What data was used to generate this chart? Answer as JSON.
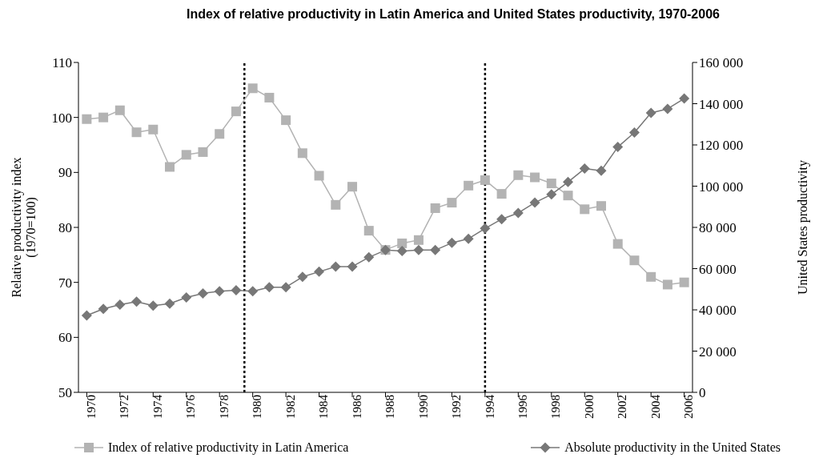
{
  "chart_data": {
    "type": "line",
    "title": "Index of relative productivity in Latin America and United States productivity, 1970-2006",
    "ylabel": "Relative productivity index (1970=100)",
    "y2label": "United States productivity",
    "x": [
      1970,
      1971,
      1972,
      1973,
      1974,
      1975,
      1976,
      1977,
      1978,
      1979,
      1980,
      1981,
      1982,
      1983,
      1984,
      1985,
      1986,
      1987,
      1988,
      1989,
      1990,
      1991,
      1992,
      1993,
      1994,
      1995,
      1996,
      1997,
      1998,
      1999,
      2000,
      2001,
      2002,
      2003,
      2004,
      2005,
      2006
    ],
    "series": [
      {
        "name": "Index of relative productivity in Latin America",
        "color": "#b3b3b3",
        "marker": "square",
        "values": [
          99.7,
          100,
          101.3,
          97.3,
          97.8,
          91,
          93.2,
          93.7,
          97,
          101.1,
          105.3,
          103.6,
          99.5,
          93.5,
          89.4,
          84.1,
          87.4,
          79.4,
          75.9,
          77.1,
          77.7,
          83.5,
          84.5,
          87.6,
          88.6,
          86.1,
          89.5,
          89.1,
          88,
          85.8,
          83.3,
          83.9,
          77,
          74,
          71,
          69.6,
          70
        ]
      },
      {
        "name": "Absolute productivity in the United States",
        "color": "#777777",
        "marker": "diamond",
        "axis": "y2",
        "values": [
          37300,
          40500,
          42500,
          44000,
          42000,
          43000,
          46000,
          48000,
          49000,
          49500,
          49000,
          51000,
          51000,
          56000,
          58500,
          61000,
          61000,
          65500,
          69000,
          68500,
          69000,
          69000,
          72500,
          74500,
          79500,
          84000,
          87000,
          92000,
          96000,
          102000,
          108500,
          107500,
          119000,
          126000,
          135500,
          137500,
          142500
        ]
      }
    ],
    "xlim": [
      1969.5,
      2006.5
    ],
    "xticks": [
      1970,
      1972,
      1974,
      1976,
      1978,
      1980,
      1982,
      1984,
      1986,
      1988,
      1990,
      1992,
      1994,
      1996,
      1998,
      2000,
      2002,
      2004,
      2006
    ],
    "ylim": [
      50,
      110
    ],
    "yticks": [
      50,
      60,
      70,
      80,
      90,
      100,
      110
    ],
    "y2lim": [
      0,
      160000
    ],
    "y2ticks": [
      0,
      {
        "value": 20000,
        "label": "20 000"
      },
      {
        "value": 40000,
        "label": "40 000"
      },
      {
        "value": 60000,
        "label": "60 000"
      },
      {
        "value": 80000,
        "label": "80 000"
      },
      {
        "value": 100000,
        "label": "100 000"
      },
      {
        "value": 120000,
        "label": "120 000"
      },
      {
        "value": 140000,
        "label": "140 000"
      },
      {
        "value": 160000,
        "label": "160 000"
      }
    ],
    "ref_lines": [
      {
        "axis": "x",
        "value": 1979.5,
        "color": "#000000",
        "line_style": "dotted"
      },
      {
        "axis": "x",
        "value": 1994,
        "color": "#000000",
        "line_style": "dotted"
      }
    ],
    "legend": "bottom",
    "grid": false
  }
}
